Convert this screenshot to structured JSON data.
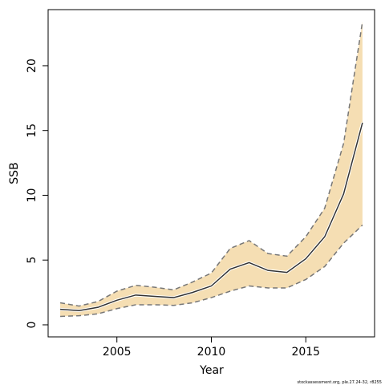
{
  "chart_data": {
    "type": "band-line",
    "x_label": "Year",
    "y_label": "SSB",
    "annotation": "stockassessment.org, ple.27.24-32, r8255",
    "x": [
      2002,
      2003,
      2004,
      2005,
      2006,
      2007,
      2008,
      2009,
      2010,
      2011,
      2012,
      2013,
      2014,
      2015,
      2016,
      2017,
      2018
    ],
    "values": [
      1.2,
      1.1,
      1.35,
      1.9,
      2.3,
      2.2,
      2.1,
      2.5,
      3.0,
      4.3,
      4.8,
      4.2,
      4.05,
      5.1,
      6.8,
      10.1,
      15.6
    ],
    "upper": [
      1.7,
      1.45,
      1.8,
      2.6,
      3.05,
      2.9,
      2.7,
      3.3,
      4.0,
      5.9,
      6.5,
      5.5,
      5.3,
      6.8,
      9.0,
      14.0,
      23.4
    ],
    "lower": [
      0.65,
      0.7,
      0.85,
      1.25,
      1.55,
      1.55,
      1.5,
      1.7,
      2.1,
      2.6,
      3.0,
      2.85,
      2.85,
      3.5,
      4.5,
      6.3,
      7.7
    ],
    "color": "#333333",
    "band_color": "#f5deb3",
    "bound_color": "#777777",
    "xlim": [
      2001.36,
      2018.64
    ],
    "xticks": [
      2005,
      2010,
      2015
    ],
    "ylim": [
      -0.93,
      24.33
    ],
    "yticks": [
      0,
      5,
      10,
      15,
      20
    ]
  }
}
